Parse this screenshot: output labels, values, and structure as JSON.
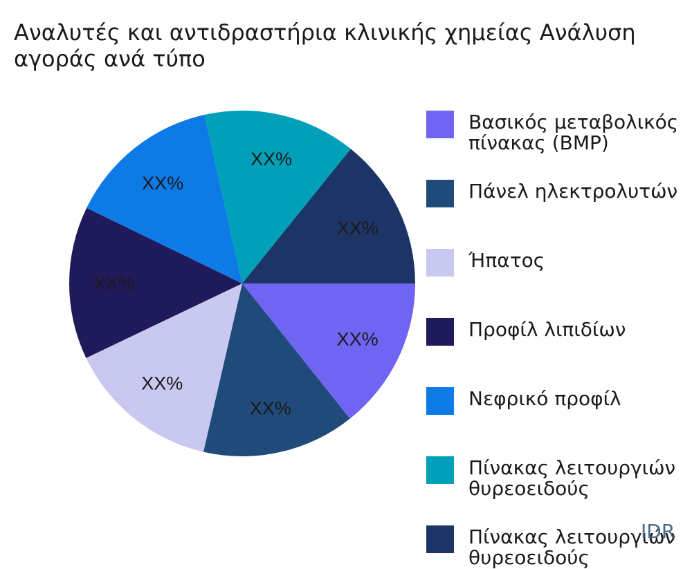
{
  "chart_data": {
    "type": "pie",
    "title": "Αναλυτές και αντιδραστήρια κλινικής χημείας Ανάλυση αγοράς ανά τύπο",
    "slice_label_text": "XX%",
    "legend_position": "right",
    "categories": [
      "Βασικός μεταβολικός πίνακας (BMP)",
      "Πάνελ ηλεκτρολυτών",
      "Ήπατος",
      "Προφίλ λιπιδίων",
      "Νεφρικό προφίλ",
      "Πίνακας λειτουργιών θυρεοειδούς",
      "Πίνακας λειτουργιών θυρεοειδούς"
    ],
    "values": [
      14.3,
      14.3,
      14.3,
      14.3,
      14.3,
      14.3,
      14.2
    ],
    "colors": [
      "#7064f2",
      "#1f4a7a",
      "#c8c8f0",
      "#1f1a5a",
      "#0e7ae6",
      "#00a0b8",
      "#1d3566"
    ]
  },
  "watermark": "IDR"
}
